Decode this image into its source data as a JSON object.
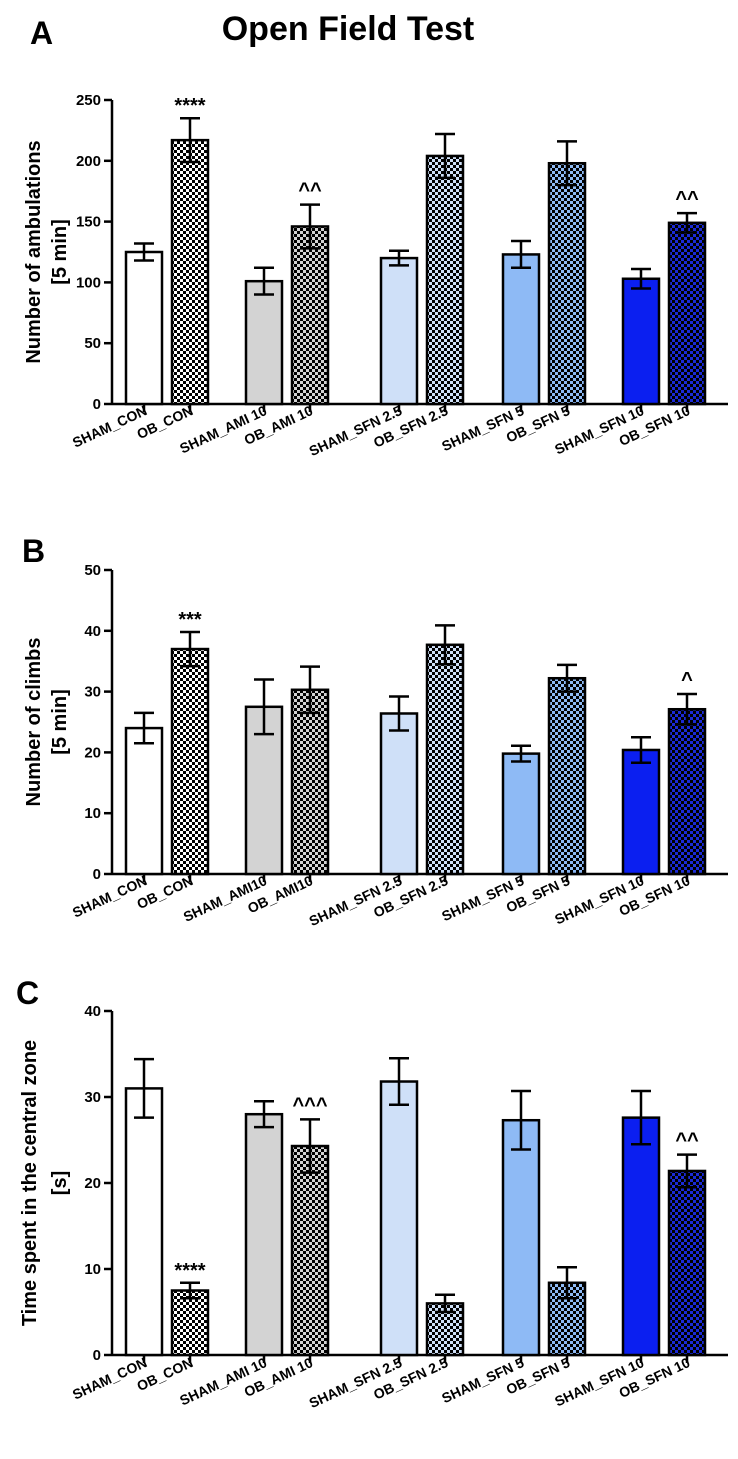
{
  "title": "Open Field Test",
  "colors": {
    "SHAM_CON": "#ffffff",
    "OB_CON": "#ffffff",
    "SHAM_AMI": "#d3d3d3",
    "OB_AMI": "#d3d3d3",
    "SHAM_SFN25": "#cfe0f8",
    "OB_SFN25": "#cfe0f8",
    "SHAM_SFN5": "#8ebaf5",
    "OB_SFN5": "#8ebaf5",
    "SHAM_SFN10": "#0b1ff0",
    "OB_SFN10": "#1b2ad8",
    "axis": "#000000"
  },
  "chart_data": [
    {
      "panel": "A",
      "type": "bar",
      "ylabel_line1": "Number of ambulations",
      "ylabel_line2": "[5 min]",
      "ylim": [
        0,
        250
      ],
      "yticks": [
        0,
        50,
        100,
        150,
        200,
        250
      ],
      "categories": [
        "SHAM_CON",
        "OB_CON",
        "SHAM_AMI 10",
        "OB_AMI 10",
        "SHAM_SFN 2.5",
        "OB_SFN 2.5",
        "SHAM_SFN 5",
        "OB_SFN 5",
        "SHAM_SFN 10",
        "OB_SFN 10"
      ],
      "values": [
        125,
        217,
        101,
        146,
        120,
        204,
        123,
        198,
        103,
        149
      ],
      "errors": [
        7,
        18,
        11,
        18,
        6,
        18,
        11,
        18,
        8,
        8
      ],
      "annotations": [
        "",
        "****",
        "",
        "^^",
        "",
        "",
        "",
        "",
        "",
        "^^"
      ]
    },
    {
      "panel": "B",
      "type": "bar",
      "ylabel_line1": "Number of climbs",
      "ylabel_line2": "[5 min]",
      "ylim": [
        0,
        50
      ],
      "yticks": [
        0,
        10,
        20,
        30,
        40,
        50
      ],
      "categories": [
        "SHAM_CON",
        "OB_CON",
        "SHAM_AMI10",
        "OB_AMI10",
        "SHAM_SFN 2.5",
        "OB_SFN 2.5",
        "SHAM_SFN 5",
        "OB_SFN 5",
        "SHAM_SFN 10",
        "OB_SFN 10"
      ],
      "values": [
        24,
        37,
        27.5,
        30.3,
        26.4,
        37.7,
        19.8,
        32.2,
        20.4,
        27.1
      ],
      "errors": [
        2.5,
        2.8,
        4.5,
        3.8,
        2.8,
        3.2,
        1.3,
        2.2,
        2.1,
        2.5
      ],
      "annotations": [
        "",
        "***",
        "",
        "",
        "",
        "",
        "",
        "",
        "",
        "^"
      ]
    },
    {
      "panel": "C",
      "type": "bar",
      "ylabel_line1": "Time spent in the central zone",
      "ylabel_line2": "[s]",
      "ylim": [
        0,
        40
      ],
      "yticks": [
        0,
        10,
        20,
        30,
        40
      ],
      "categories": [
        "SHAM_CON",
        "OB_CON",
        "SHAM_AMI 10",
        "OB_AMI 10",
        "SHAM_SFN 2.5",
        "OB_SFN 2.5",
        "SHAM_SFN 5",
        "OB_SFN 5",
        "SHAM_SFN 10",
        "OB_SFN 10"
      ],
      "values": [
        31,
        7.5,
        28,
        24.3,
        31.8,
        6,
        27.3,
        8.4,
        27.6,
        21.4
      ],
      "errors": [
        3.4,
        0.9,
        1.5,
        3.1,
        2.7,
        1,
        3.4,
        1.8,
        3.1,
        1.9
      ],
      "annotations": [
        "",
        "****",
        "",
        "^^^",
        "",
        "",
        "",
        "",
        "",
        "^^"
      ]
    }
  ]
}
